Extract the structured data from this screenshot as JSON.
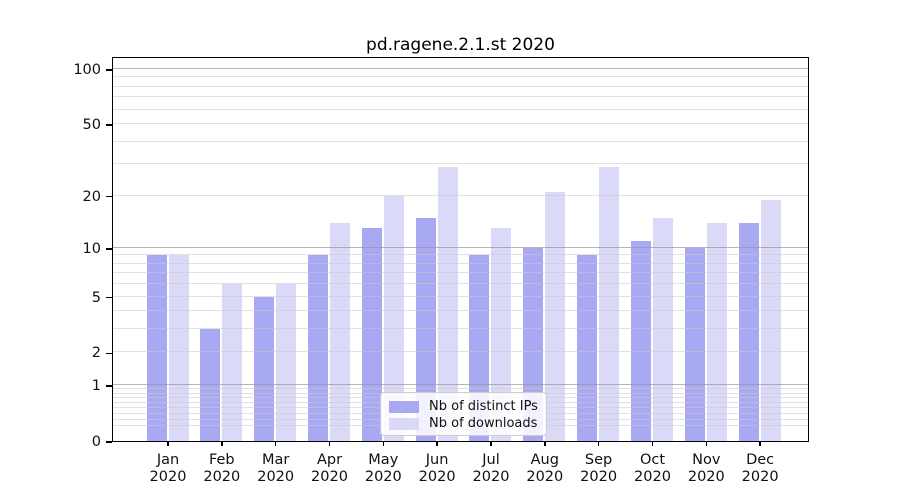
{
  "chart_data": {
    "type": "bar",
    "title": "pd.ragene.2.1.st 2020",
    "categories": [
      "Jan 2020",
      "Feb 2020",
      "Mar 2020",
      "Apr 2020",
      "May 2020",
      "Jun 2020",
      "Jul 2020",
      "Aug 2020",
      "Sep 2020",
      "Oct 2020",
      "Nov 2020",
      "Dec 2020"
    ],
    "series": [
      {
        "name": "Nb of distinct IPs",
        "color": "#a8a8f3",
        "values": [
          9,
          3,
          5,
          9,
          13,
          15,
          9,
          10,
          9,
          11,
          10,
          14
        ]
      },
      {
        "name": "Nb of downloads",
        "color": "#dadaf8",
        "values": [
          9,
          6,
          6,
          14,
          20,
          29,
          13,
          21,
          29,
          15,
          14,
          19
        ]
      }
    ],
    "xlabel": "",
    "ylabel": "",
    "yscale": "log1p",
    "ylim": [
      0,
      118
    ],
    "yticks": [
      0,
      1,
      2,
      5,
      10,
      20,
      50,
      100
    ],
    "major_grid_ticks": [
      1,
      10,
      100
    ],
    "minor_grid_ticks": [
      0.2,
      0.3,
      0.4,
      0.5,
      0.6,
      0.7,
      0.8,
      0.9,
      2,
      3,
      4,
      5,
      6,
      7,
      8,
      9,
      20,
      30,
      40,
      50,
      60,
      70,
      80,
      90
    ],
    "grid": "on",
    "legend_position": "lower center"
  },
  "axis": {
    "months": [
      "Jan",
      "Feb",
      "Mar",
      "Apr",
      "May",
      "Jun",
      "Jul",
      "Aug",
      "Sep",
      "Oct",
      "Nov",
      "Dec"
    ],
    "year": "2020",
    "ytick_labels": [
      "0",
      "1",
      "2",
      "5",
      "10",
      "20",
      "50",
      "100"
    ]
  },
  "colors": {
    "bar_ips": "#a8a8f3",
    "bar_downloads": "#dadaf8",
    "major_grid": "#b3b3b3",
    "minor_grid": "#e7e7e7",
    "spine": "#000000",
    "background": "#ffffff",
    "text": "#111111"
  }
}
